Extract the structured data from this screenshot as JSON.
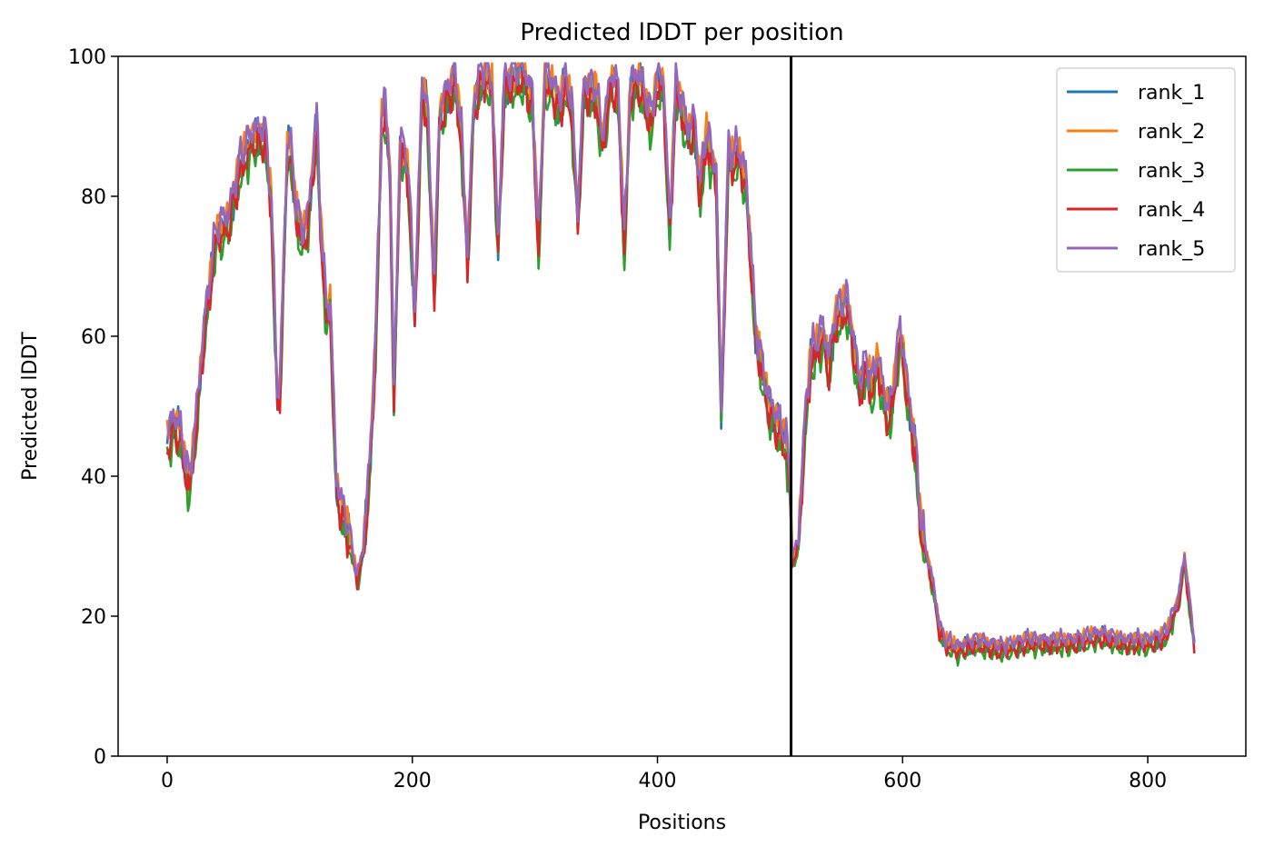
{
  "chart_data": {
    "type": "line",
    "title": "Predicted lDDT per position",
    "xlabel": "Positions",
    "ylabel": "Predicted lDDT",
    "xlim": [
      -40,
      880
    ],
    "ylim": [
      0,
      100
    ],
    "xticks": [
      0,
      200,
      400,
      600,
      800
    ],
    "yticks": [
      0,
      20,
      40,
      60,
      80,
      100
    ],
    "grid": false,
    "legend_position": "top-right",
    "vline_x": 509,
    "series": [
      {
        "name": "rank_1",
        "color": "#1f77b4",
        "offset": 0.6,
        "phase": 0.0
      },
      {
        "name": "rank_2",
        "color": "#ff7f0e",
        "offset": 1.2,
        "phase": 1.3
      },
      {
        "name": "rank_3",
        "color": "#2ca02c",
        "offset": -1.4,
        "phase": 2.1
      },
      {
        "name": "rank_4",
        "color": "#d62728",
        "offset": -0.6,
        "phase": 3.7
      },
      {
        "name": "rank_5",
        "color": "#9467bd",
        "offset": 1.8,
        "phase": 4.9
      }
    ],
    "profile": [
      [
        0,
        44
      ],
      [
        5,
        47
      ],
      [
        10,
        46
      ],
      [
        18,
        38
      ],
      [
        22,
        44
      ],
      [
        30,
        60
      ],
      [
        40,
        74
      ],
      [
        50,
        76
      ],
      [
        60,
        84
      ],
      [
        70,
        88
      ],
      [
        80,
        88
      ],
      [
        85,
        78
      ],
      [
        90,
        50
      ],
      [
        92,
        52
      ],
      [
        98,
        86
      ],
      [
        100,
        87
      ],
      [
        105,
        78
      ],
      [
        110,
        73
      ],
      [
        115,
        76
      ],
      [
        122,
        90
      ],
      [
        125,
        76
      ],
      [
        130,
        62
      ],
      [
        133,
        64
      ],
      [
        138,
        38
      ],
      [
        145,
        33
      ],
      [
        150,
        30
      ],
      [
        155,
        25
      ],
      [
        160,
        29
      ],
      [
        165,
        40
      ],
      [
        170,
        58
      ],
      [
        175,
        90
      ],
      [
        178,
        92
      ],
      [
        182,
        82
      ],
      [
        185,
        50
      ],
      [
        190,
        86
      ],
      [
        195,
        85
      ],
      [
        198,
        78
      ],
      [
        202,
        62
      ],
      [
        208,
        95
      ],
      [
        212,
        92
      ],
      [
        218,
        66
      ],
      [
        222,
        90
      ],
      [
        228,
        94
      ],
      [
        235,
        96
      ],
      [
        240,
        88
      ],
      [
        245,
        70
      ],
      [
        250,
        92
      ],
      [
        255,
        96
      ],
      [
        260,
        97
      ],
      [
        265,
        95
      ],
      [
        270,
        72
      ],
      [
        275,
        95
      ],
      [
        280,
        96
      ],
      [
        290,
        97
      ],
      [
        298,
        93
      ],
      [
        303,
        72
      ],
      [
        308,
        96
      ],
      [
        315,
        95
      ],
      [
        320,
        92
      ],
      [
        325,
        96
      ],
      [
        330,
        92
      ],
      [
        335,
        76
      ],
      [
        340,
        95
      ],
      [
        350,
        94
      ],
      [
        355,
        87
      ],
      [
        362,
        96
      ],
      [
        368,
        94
      ],
      [
        373,
        72
      ],
      [
        378,
        95
      ],
      [
        385,
        96
      ],
      [
        390,
        93
      ],
      [
        395,
        90
      ],
      [
        400,
        96
      ],
      [
        405,
        95
      ],
      [
        410,
        74
      ],
      [
        415,
        95
      ],
      [
        420,
        92
      ],
      [
        425,
        88
      ],
      [
        430,
        90
      ],
      [
        435,
        80
      ],
      [
        440,
        88
      ],
      [
        448,
        82
      ],
      [
        452,
        48
      ],
      [
        458,
        86
      ],
      [
        462,
        84
      ],
      [
        465,
        86
      ],
      [
        468,
        84
      ],
      [
        472,
        82
      ],
      [
        475,
        74
      ],
      [
        480,
        60
      ],
      [
        485,
        55
      ],
      [
        490,
        50
      ],
      [
        495,
        48
      ],
      [
        500,
        46
      ],
      [
        505,
        44
      ],
      [
        508,
        38
      ],
      [
        510,
        28
      ],
      [
        515,
        30
      ],
      [
        520,
        46
      ],
      [
        525,
        56
      ],
      [
        530,
        58
      ],
      [
        535,
        60
      ],
      [
        540,
        55
      ],
      [
        545,
        62
      ],
      [
        550,
        63
      ],
      [
        555,
        64
      ],
      [
        560,
        58
      ],
      [
        565,
        52
      ],
      [
        570,
        55
      ],
      [
        575,
        52
      ],
      [
        580,
        56
      ],
      [
        585,
        50
      ],
      [
        590,
        48
      ],
      [
        598,
        60
      ],
      [
        605,
        50
      ],
      [
        610,
        44
      ],
      [
        615,
        32
      ],
      [
        620,
        28
      ],
      [
        625,
        24
      ],
      [
        630,
        18
      ],
      [
        635,
        16
      ],
      [
        645,
        15
      ],
      [
        660,
        16
      ],
      [
        680,
        15
      ],
      [
        700,
        16
      ],
      [
        720,
        16
      ],
      [
        740,
        16
      ],
      [
        760,
        17
      ],
      [
        780,
        16
      ],
      [
        800,
        16
      ],
      [
        815,
        17
      ],
      [
        825,
        22
      ],
      [
        830,
        28
      ],
      [
        835,
        20
      ],
      [
        838,
        16
      ]
    ]
  }
}
